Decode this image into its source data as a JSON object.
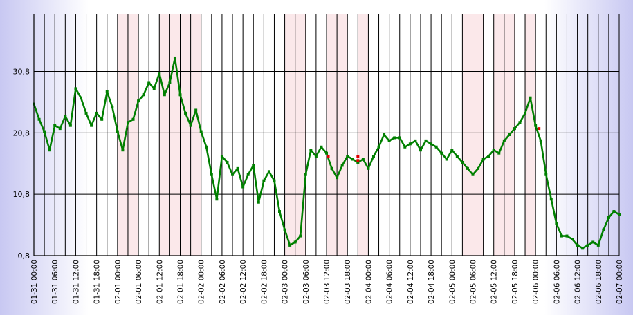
{
  "chart_data": {
    "type": "line",
    "title": "",
    "xlabel": "",
    "ylabel": "",
    "y_ticks": [
      "0,8",
      "10,8",
      "20,8",
      "30,8"
    ],
    "y_tick_values": [
      0.8,
      10.8,
      20.8,
      30.8
    ],
    "ylim": [
      0.8,
      40.2
    ],
    "xlim": [
      "01-31 00:00",
      "02-07 00:00"
    ],
    "x_ticks": [
      "01-31 00:00",
      "01-31 06:00",
      "01-31 12:00",
      "01-31 18:00",
      "02-01 00:00",
      "02-01 06:00",
      "02-01 12:00",
      "02-01 18:00",
      "02-02 00:00",
      "02-02 06:00",
      "02-02 12:00",
      "02-02 18:00",
      "02-03 00:00",
      "02-03 06:00",
      "02-03 12:00",
      "02-03 18:00",
      "02-04 00:00",
      "02-04 06:00",
      "02-04 12:00",
      "02-04 18:00",
      "02-05 00:00",
      "02-05 06:00",
      "02-05 12:00",
      "02-05 18:00",
      "02-06 00:00",
      "02-06 06:00",
      "02-06 12:00",
      "02-06 18:00",
      "02-07 00:00"
    ],
    "grid": true,
    "shaded_ranges": [
      [
        "02-01 00:00",
        "02-01 06:00"
      ],
      [
        "02-01 12:00",
        "02-02 00:00"
      ],
      [
        "02-03 00:00",
        "02-03 06:00"
      ],
      [
        "02-03 12:00",
        "02-03 18:00"
      ],
      [
        "02-03 21:00",
        "02-04 00:00"
      ],
      [
        "02-05 03:00",
        "02-05 09:00"
      ],
      [
        "02-05 12:00",
        "02-05 18:00"
      ],
      [
        "02-05 21:00",
        "02-06 00:00"
      ]
    ],
    "series": [
      {
        "color": "#008000",
        "x": [
          "01-31 00:00",
          "01-31 01:30",
          "01-31 03:00",
          "01-31 04:30",
          "01-31 06:00",
          "01-31 07:30",
          "01-31 09:00",
          "01-31 10:30",
          "01-31 12:00",
          "01-31 13:30",
          "01-31 15:00",
          "01-31 16:30",
          "01-31 18:00",
          "01-31 19:30",
          "01-31 21:00",
          "01-31 22:30",
          "02-01 00:00",
          "02-01 01:30",
          "02-01 03:00",
          "02-01 04:30",
          "02-01 06:00",
          "02-01 07:30",
          "02-01 09:00",
          "02-01 10:30",
          "02-01 12:00",
          "02-01 13:30",
          "02-01 15:00",
          "02-01 16:30",
          "02-01 18:00",
          "02-01 19:30",
          "02-01 21:00",
          "02-01 22:30",
          "02-02 00:00",
          "02-02 01:30",
          "02-02 03:00",
          "02-02 04:30",
          "02-02 06:00",
          "02-02 07:30",
          "02-02 09:00",
          "02-02 10:30",
          "02-02 12:00",
          "02-02 13:30",
          "02-02 15:00",
          "02-02 16:30",
          "02-02 18:00",
          "02-02 19:30",
          "02-02 21:00",
          "02-02 22:30",
          "02-03 00:00",
          "02-03 01:30",
          "02-03 03:00",
          "02-03 04:30",
          "02-03 06:00",
          "02-03 07:30",
          "02-03 09:00",
          "02-03 10:30",
          "02-03 12:00",
          "02-03 13:30",
          "02-03 15:00",
          "02-03 16:30",
          "02-03 18:00",
          "02-03 19:30",
          "02-03 21:00",
          "02-03 22:30",
          "02-04 00:00",
          "02-04 01:30",
          "02-04 03:00",
          "02-04 04:30",
          "02-04 06:00",
          "02-04 07:30",
          "02-04 09:00",
          "02-04 10:30",
          "02-04 12:00",
          "02-04 13:30",
          "02-04 15:00",
          "02-04 16:30",
          "02-04 18:00",
          "02-04 19:30",
          "02-04 21:00",
          "02-04 22:30",
          "02-05 00:00",
          "02-05 01:30",
          "02-05 03:00",
          "02-05 04:30",
          "02-05 06:00",
          "02-05 07:30",
          "02-05 09:00",
          "02-05 10:30",
          "02-05 12:00",
          "02-05 13:30",
          "02-05 15:00",
          "02-05 16:30",
          "02-05 18:00",
          "02-05 19:30",
          "02-05 21:00",
          "02-05 22:30",
          "02-06 00:00",
          "02-06 01:30",
          "02-06 03:00",
          "02-06 04:30",
          "02-06 06:00",
          "02-06 07:30",
          "02-06 09:00",
          "02-06 10:30",
          "02-06 12:00",
          "02-06 13:30",
          "02-06 15:00",
          "02-06 16:30",
          "02-06 18:00",
          "02-06 19:30",
          "02-06 21:00",
          "02-06 22:30",
          "02-07 00:00"
        ],
        "values": [
          25.5,
          23.0,
          21.0,
          18.0,
          22.0,
          21.5,
          23.5,
          22.0,
          28.0,
          26.5,
          24.0,
          22.0,
          24.0,
          23.0,
          27.5,
          25.0,
          21.0,
          18.0,
          22.5,
          23.0,
          26.0,
          27.0,
          29.0,
          28.0,
          30.5,
          27.0,
          29.0,
          33.0,
          27.0,
          24.0,
          22.0,
          24.5,
          21.0,
          18.5,
          14.0,
          10.0,
          17.0,
          16.0,
          14.0,
          15.0,
          12.0,
          14.0,
          15.5,
          9.5,
          13.0,
          14.5,
          13.0,
          8.0,
          5.0,
          2.5,
          3.0,
          4.0,
          14.0,
          18.0,
          17.0,
          18.5,
          17.5,
          15.0,
          13.5,
          15.5,
          17.0,
          16.5,
          16.0,
          16.5,
          15.0,
          17.0,
          18.5,
          20.5,
          19.5,
          20.0,
          20.0,
          18.5,
          19.0,
          19.5,
          18.0,
          19.5,
          19.0,
          18.5,
          17.5,
          16.5,
          18.0,
          17.0,
          16.0,
          15.0,
          14.0,
          15.0,
          16.5,
          17.0,
          18.0,
          17.5,
          19.5,
          20.5,
          21.5,
          22.5,
          24.0,
          26.5,
          22.0,
          19.5,
          14.0,
          10.0,
          6.0,
          4.0,
          4.0,
          3.5,
          2.5,
          2.0,
          2.5,
          3.0,
          2.5,
          5.0,
          7.0,
          8.0,
          7.5
        ]
      }
    ],
    "outlier_points": [
      {
        "x": "02-03 12:30",
        "y": 17.0
      },
      {
        "x": "02-03 21:00",
        "y": 17.0
      },
      {
        "x": "02-03 21:00",
        "y": 16.3
      },
      {
        "x": "02-06 01:00",
        "y": 21.5
      }
    ]
  }
}
